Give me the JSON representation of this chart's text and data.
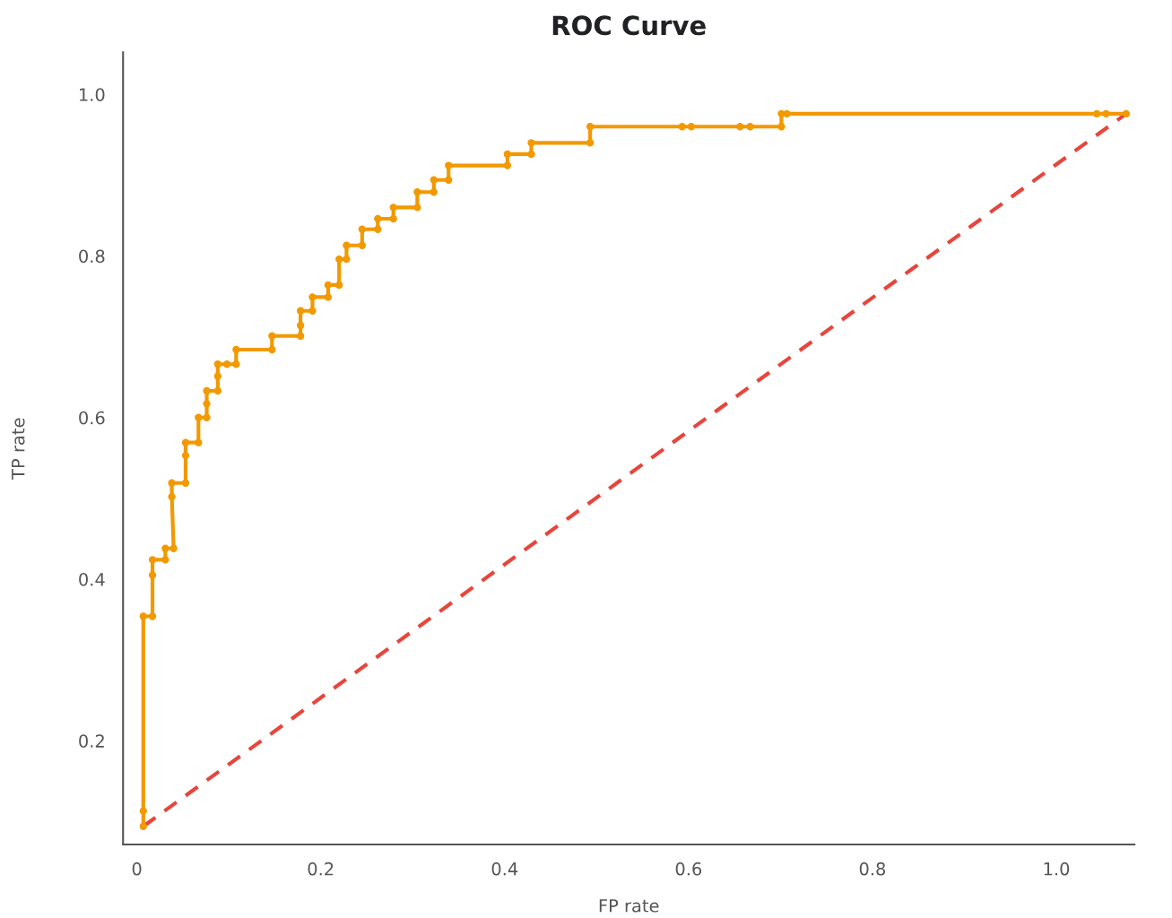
{
  "chart_data": {
    "type": "line",
    "title": "ROC Curve",
    "xlabel": "FP rate",
    "ylabel": "TP rate",
    "xlim": [
      -0.015,
      1.085
    ],
    "ylim": [
      0.0715,
      1.052
    ],
    "xticks": [
      0,
      0.2,
      0.4,
      0.6,
      0.8,
      {
        "value": 1,
        "label": "1.0"
      }
    ],
    "yticks": [
      0.2,
      0.4,
      0.6,
      0.8,
      {
        "value": 1,
        "label": "1.0"
      }
    ],
    "grid": false,
    "legend": false,
    "series": [
      {
        "color": "#f29900",
        "marker": "circle",
        "line_style": "solid",
        "x": [
          0.007,
          0.007,
          0.007,
          0.017,
          0.017,
          0.017,
          0.031,
          0.031,
          0.04,
          0.038,
          0.038,
          0.053,
          0.053,
          0.053,
          0.067,
          0.067,
          0.076,
          0.076,
          0.076,
          0.088,
          0.088,
          0.088,
          0.098,
          0.108,
          0.108,
          0.147,
          0.147,
          0.178,
          0.178,
          0.178,
          0.191,
          0.191,
          0.208,
          0.208,
          0.22,
          0.22,
          0.228,
          0.228,
          0.245,
          0.245,
          0.262,
          0.262,
          0.279,
          0.279,
          0.305,
          0.305,
          0.323,
          0.323,
          0.339,
          0.339,
          0.403,
          0.403,
          0.429,
          0.429,
          0.493,
          0.493,
          0.593,
          0.603,
          0.656,
          0.667,
          0.701,
          0.701,
          0.707,
          1.044,
          1.054,
          1.076
        ],
        "values": [
          0.094,
          0.113,
          0.354,
          0.354,
          0.405,
          0.424,
          0.424,
          0.438,
          0.438,
          0.502,
          0.519,
          0.519,
          0.553,
          0.569,
          0.569,
          0.6,
          0.6,
          0.617,
          0.633,
          0.633,
          0.651,
          0.666,
          0.666,
          0.666,
          0.684,
          0.684,
          0.701,
          0.701,
          0.714,
          0.732,
          0.732,
          0.749,
          0.749,
          0.764,
          0.764,
          0.796,
          0.796,
          0.813,
          0.813,
          0.833,
          0.833,
          0.846,
          0.846,
          0.86,
          0.86,
          0.879,
          0.879,
          0.894,
          0.894,
          0.912,
          0.912,
          0.926,
          0.926,
          0.94,
          0.94,
          0.96,
          0.96,
          0.96,
          0.96,
          0.96,
          0.96,
          0.976,
          0.976,
          0.976,
          0.976,
          0.976
        ]
      },
      {
        "color": "#e8453c",
        "marker": "none",
        "line_style": "dashed",
        "x": [
          0.007,
          1.076
        ],
        "values": [
          0.094,
          0.976
        ]
      }
    ]
  }
}
